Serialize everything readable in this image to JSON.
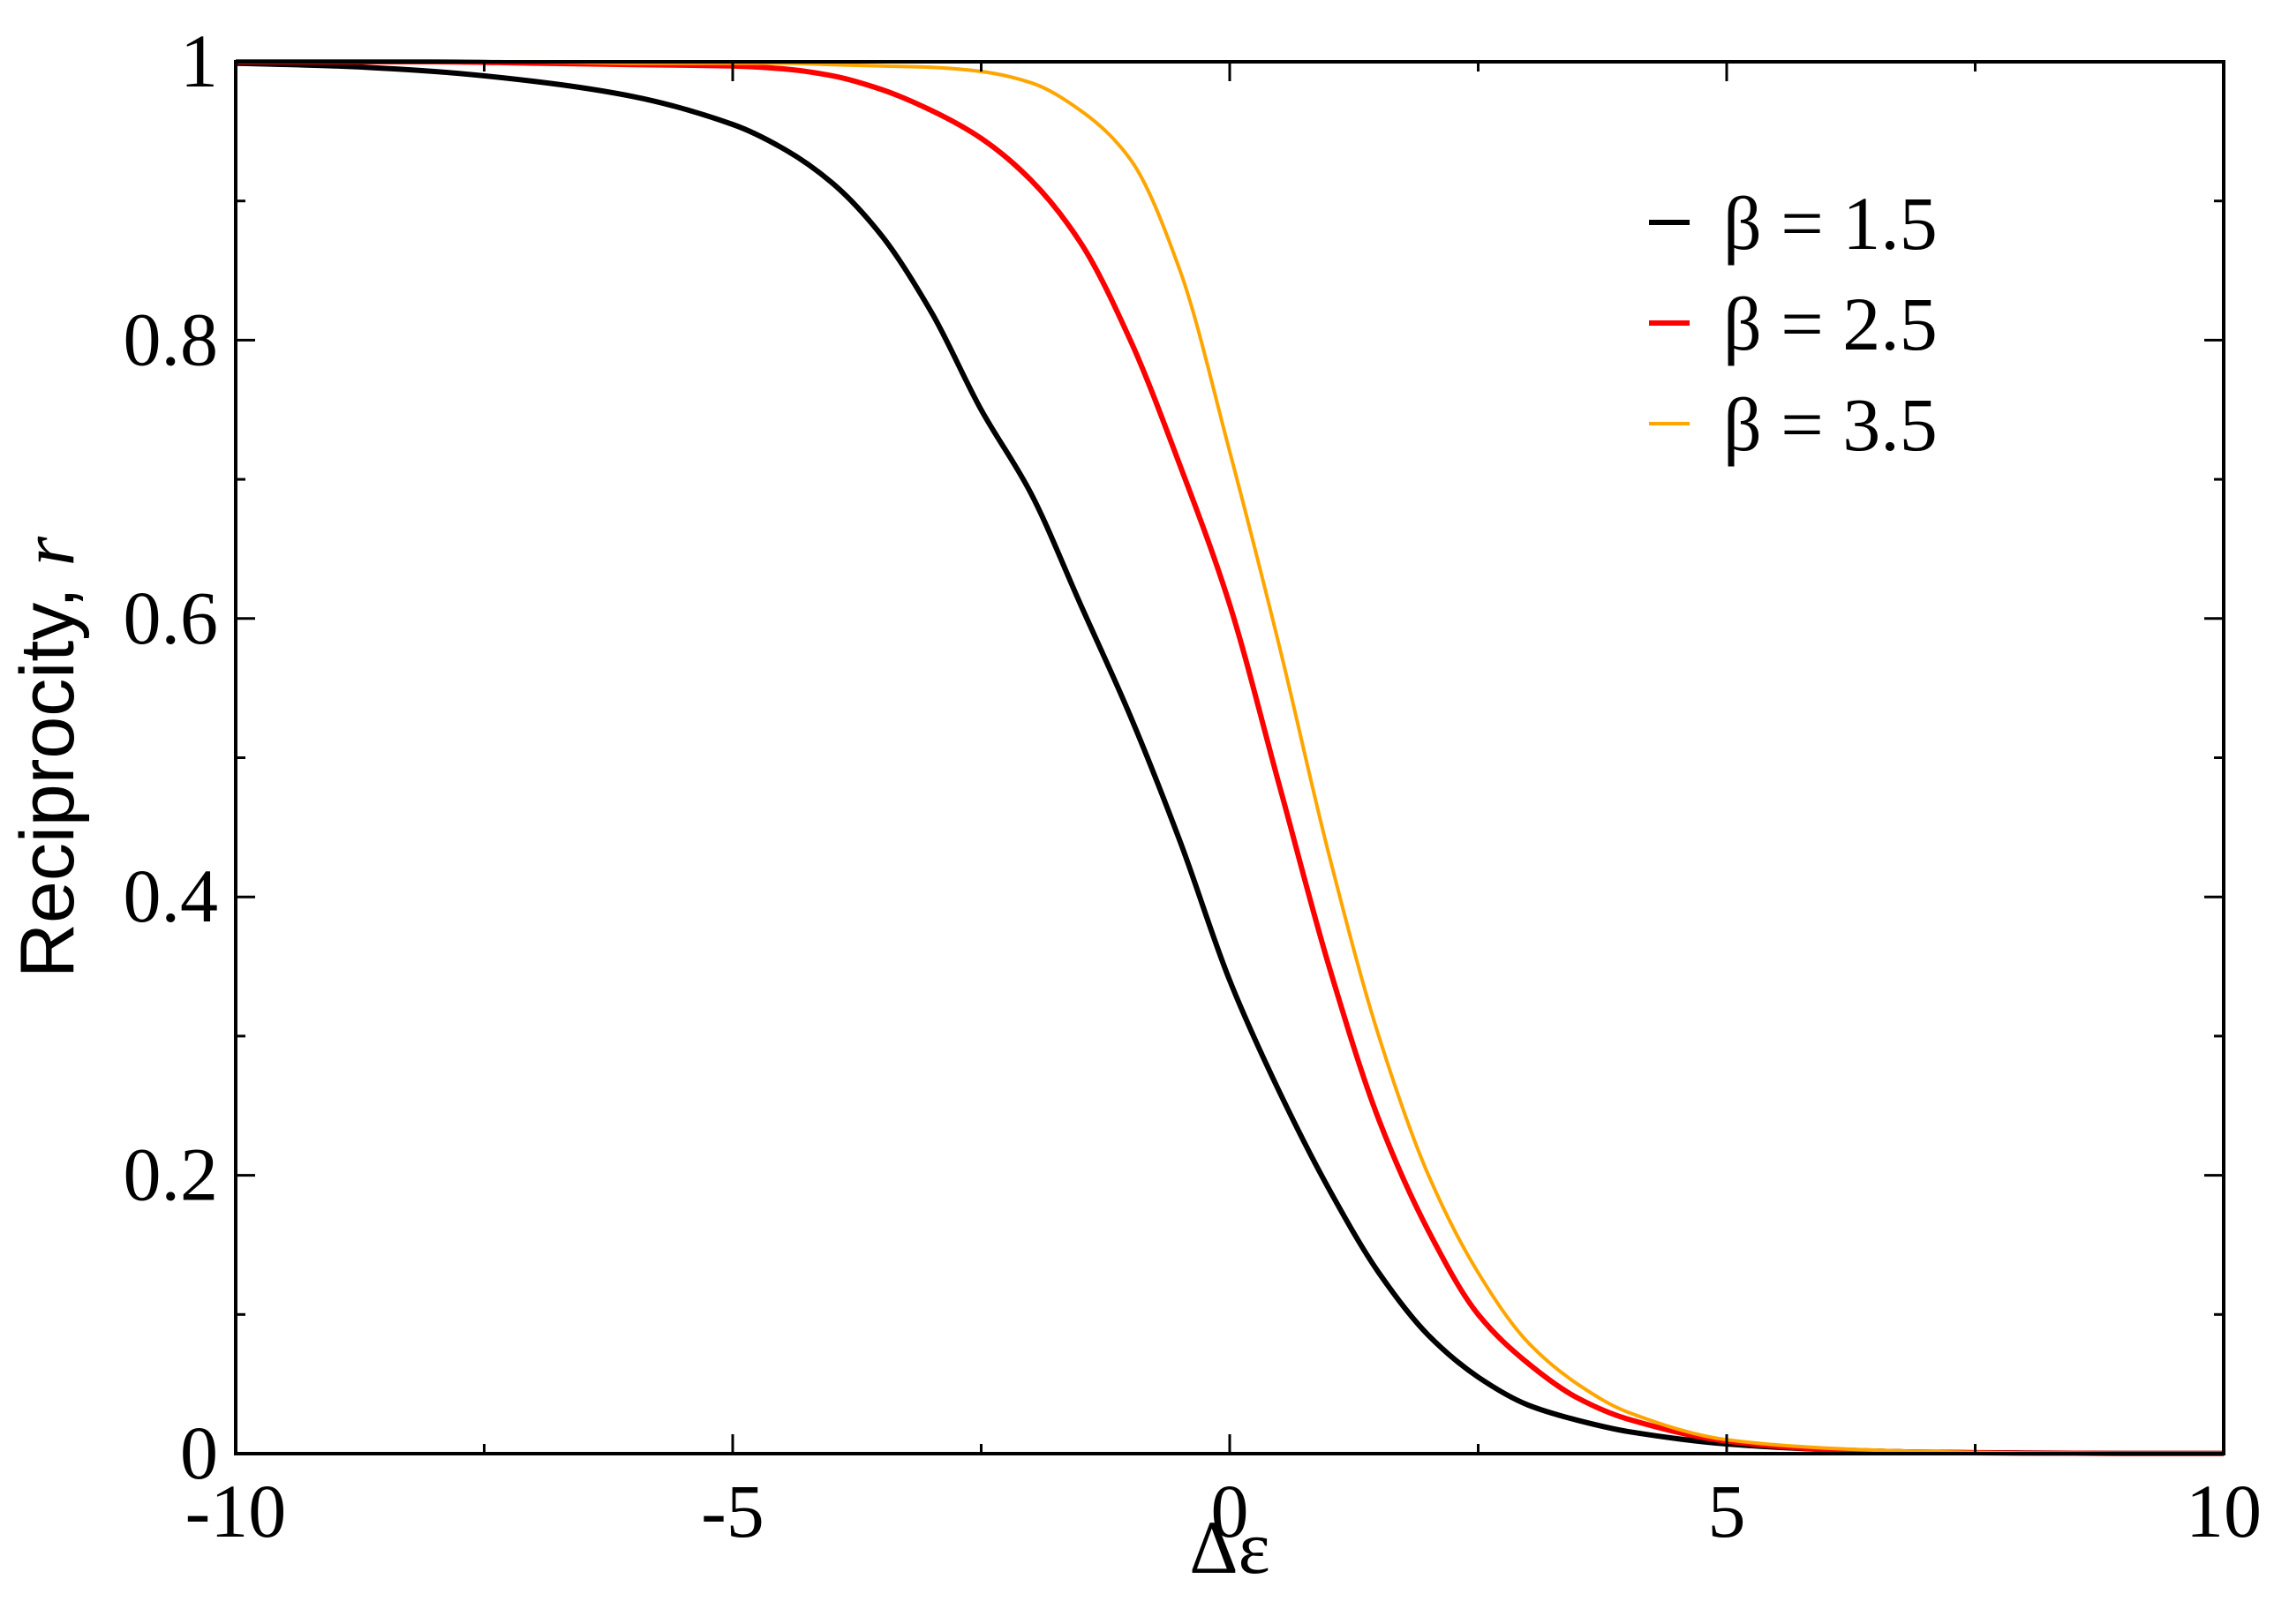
{
  "chart_data": {
    "type": "line",
    "xlabel": "Δε",
    "ylabel": "Reciprocity, ",
    "ylabel_italic": "r",
    "xlim": [
      -10,
      10
    ],
    "ylim": [
      0,
      1
    ],
    "x_ticks": [
      -10,
      -5,
      0,
      5,
      10
    ],
    "x_tick_labels": [
      "-10",
      "-5",
      "0",
      "5",
      "10"
    ],
    "y_ticks": [
      0,
      0.2,
      0.4,
      0.6,
      0.8,
      1
    ],
    "y_tick_labels": [
      "0",
      "0.2",
      "0.4",
      "0.6",
      "0.8",
      "1"
    ],
    "grid": false,
    "legend_position": "top-right",
    "x": [
      -10,
      -9,
      -8,
      -7,
      -6,
      -5,
      -4.5,
      -4,
      -3.5,
      -3,
      -2.5,
      -2,
      -1.5,
      -1,
      -0.5,
      0,
      0.5,
      1,
      1.5,
      2,
      2.5,
      3,
      3.5,
      4,
      5,
      6,
      7,
      8,
      9,
      10
    ],
    "series": [
      {
        "name": "β = 1.5",
        "color": "#000000",
        "values": [
          0.999,
          0.997,
          0.993,
          0.986,
          0.975,
          0.955,
          0.938,
          0.913,
          0.875,
          0.82,
          0.75,
          0.69,
          0.61,
          0.53,
          0.44,
          0.34,
          0.26,
          0.19,
          0.13,
          0.085,
          0.055,
          0.035,
          0.024,
          0.016,
          0.007,
          0.003,
          0.001,
          0.0005,
          0.0002,
          0.0001
        ]
      },
      {
        "name": "β = 2.5",
        "color": "#ff0000",
        "values": [
          1.0,
          1.0,
          1.0,
          0.999,
          0.998,
          0.997,
          0.995,
          0.99,
          0.98,
          0.965,
          0.945,
          0.915,
          0.87,
          0.8,
          0.71,
          0.61,
          0.48,
          0.35,
          0.24,
          0.16,
          0.1,
          0.065,
          0.04,
          0.025,
          0.009,
          0.003,
          0.001,
          0.0004,
          0.0002,
          0.0001
        ]
      },
      {
        "name": "β = 3.5",
        "color": "#ffa500",
        "values": [
          1.0,
          1.0,
          1.0,
          1.0,
          0.999,
          0.999,
          0.999,
          0.998,
          0.997,
          0.996,
          0.993,
          0.985,
          0.965,
          0.93,
          0.85,
          0.72,
          0.58,
          0.43,
          0.3,
          0.2,
          0.13,
          0.08,
          0.05,
          0.03,
          0.01,
          0.004,
          0.0015,
          0.0005,
          0.0002,
          0.0001
        ]
      }
    ]
  }
}
